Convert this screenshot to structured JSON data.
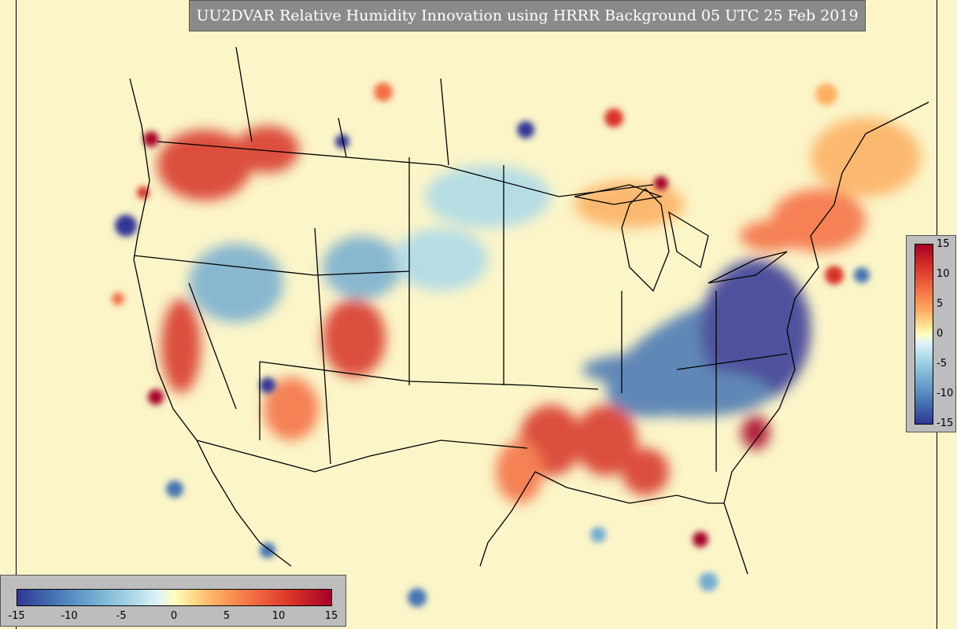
{
  "title": "UU2DVAR Relative Humidity Innovation using HRRR Background 05 UTC 25 Feb 2019",
  "colorbar_vertical": {
    "ticks": [
      "15",
      "10",
      "5",
      "0",
      "-5",
      "-10",
      "-15"
    ]
  },
  "colorbar_horizontal": {
    "ticks": [
      "-15",
      "-10",
      "-5",
      "0",
      "5",
      "10",
      "15"
    ]
  },
  "colors": {
    "max": "#a50026",
    "mid": "#ffffbf",
    "min": "#313695",
    "panel": "#bdbdbd",
    "title_bg": "#8a8a8a"
  }
}
